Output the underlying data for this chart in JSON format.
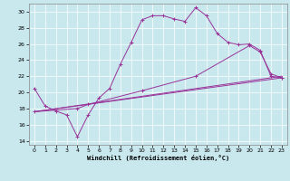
{
  "xlabel": "Windchill (Refroidissement éolien,°C)",
  "xlim": [
    -0.5,
    23.5
  ],
  "ylim": [
    13.5,
    31.0
  ],
  "xticks": [
    0,
    1,
    2,
    3,
    4,
    5,
    6,
    7,
    8,
    9,
    10,
    11,
    12,
    13,
    14,
    15,
    16,
    17,
    18,
    19,
    20,
    21,
    22,
    23
  ],
  "yticks": [
    14,
    16,
    18,
    20,
    22,
    24,
    26,
    28,
    30
  ],
  "bg_color": "#c8e8ee",
  "line_color": "#993399",
  "line1_x": [
    0,
    1,
    2,
    3,
    4,
    5,
    6,
    7,
    8,
    9,
    10,
    11,
    12,
    13,
    14,
    15,
    16,
    17,
    18,
    19,
    20,
    21,
    22,
    23
  ],
  "line1_y": [
    20.5,
    18.3,
    17.7,
    17.2,
    14.5,
    17.2,
    19.3,
    20.5,
    23.5,
    26.2,
    29.0,
    29.5,
    29.5,
    29.1,
    28.8,
    30.5,
    29.5,
    27.3,
    26.2,
    25.9,
    26.0,
    25.2,
    22.0,
    21.8
  ],
  "line2_x": [
    0,
    4,
    5,
    10,
    15,
    20,
    21,
    22,
    23
  ],
  "line2_y": [
    17.6,
    18.0,
    18.5,
    20.2,
    22.0,
    25.8,
    25.0,
    22.3,
    21.8
  ],
  "line3_x": [
    0,
    23
  ],
  "line3_y": [
    17.6,
    21.8
  ],
  "line4_x": [
    0,
    23
  ],
  "line4_y": [
    17.6,
    22.0
  ]
}
